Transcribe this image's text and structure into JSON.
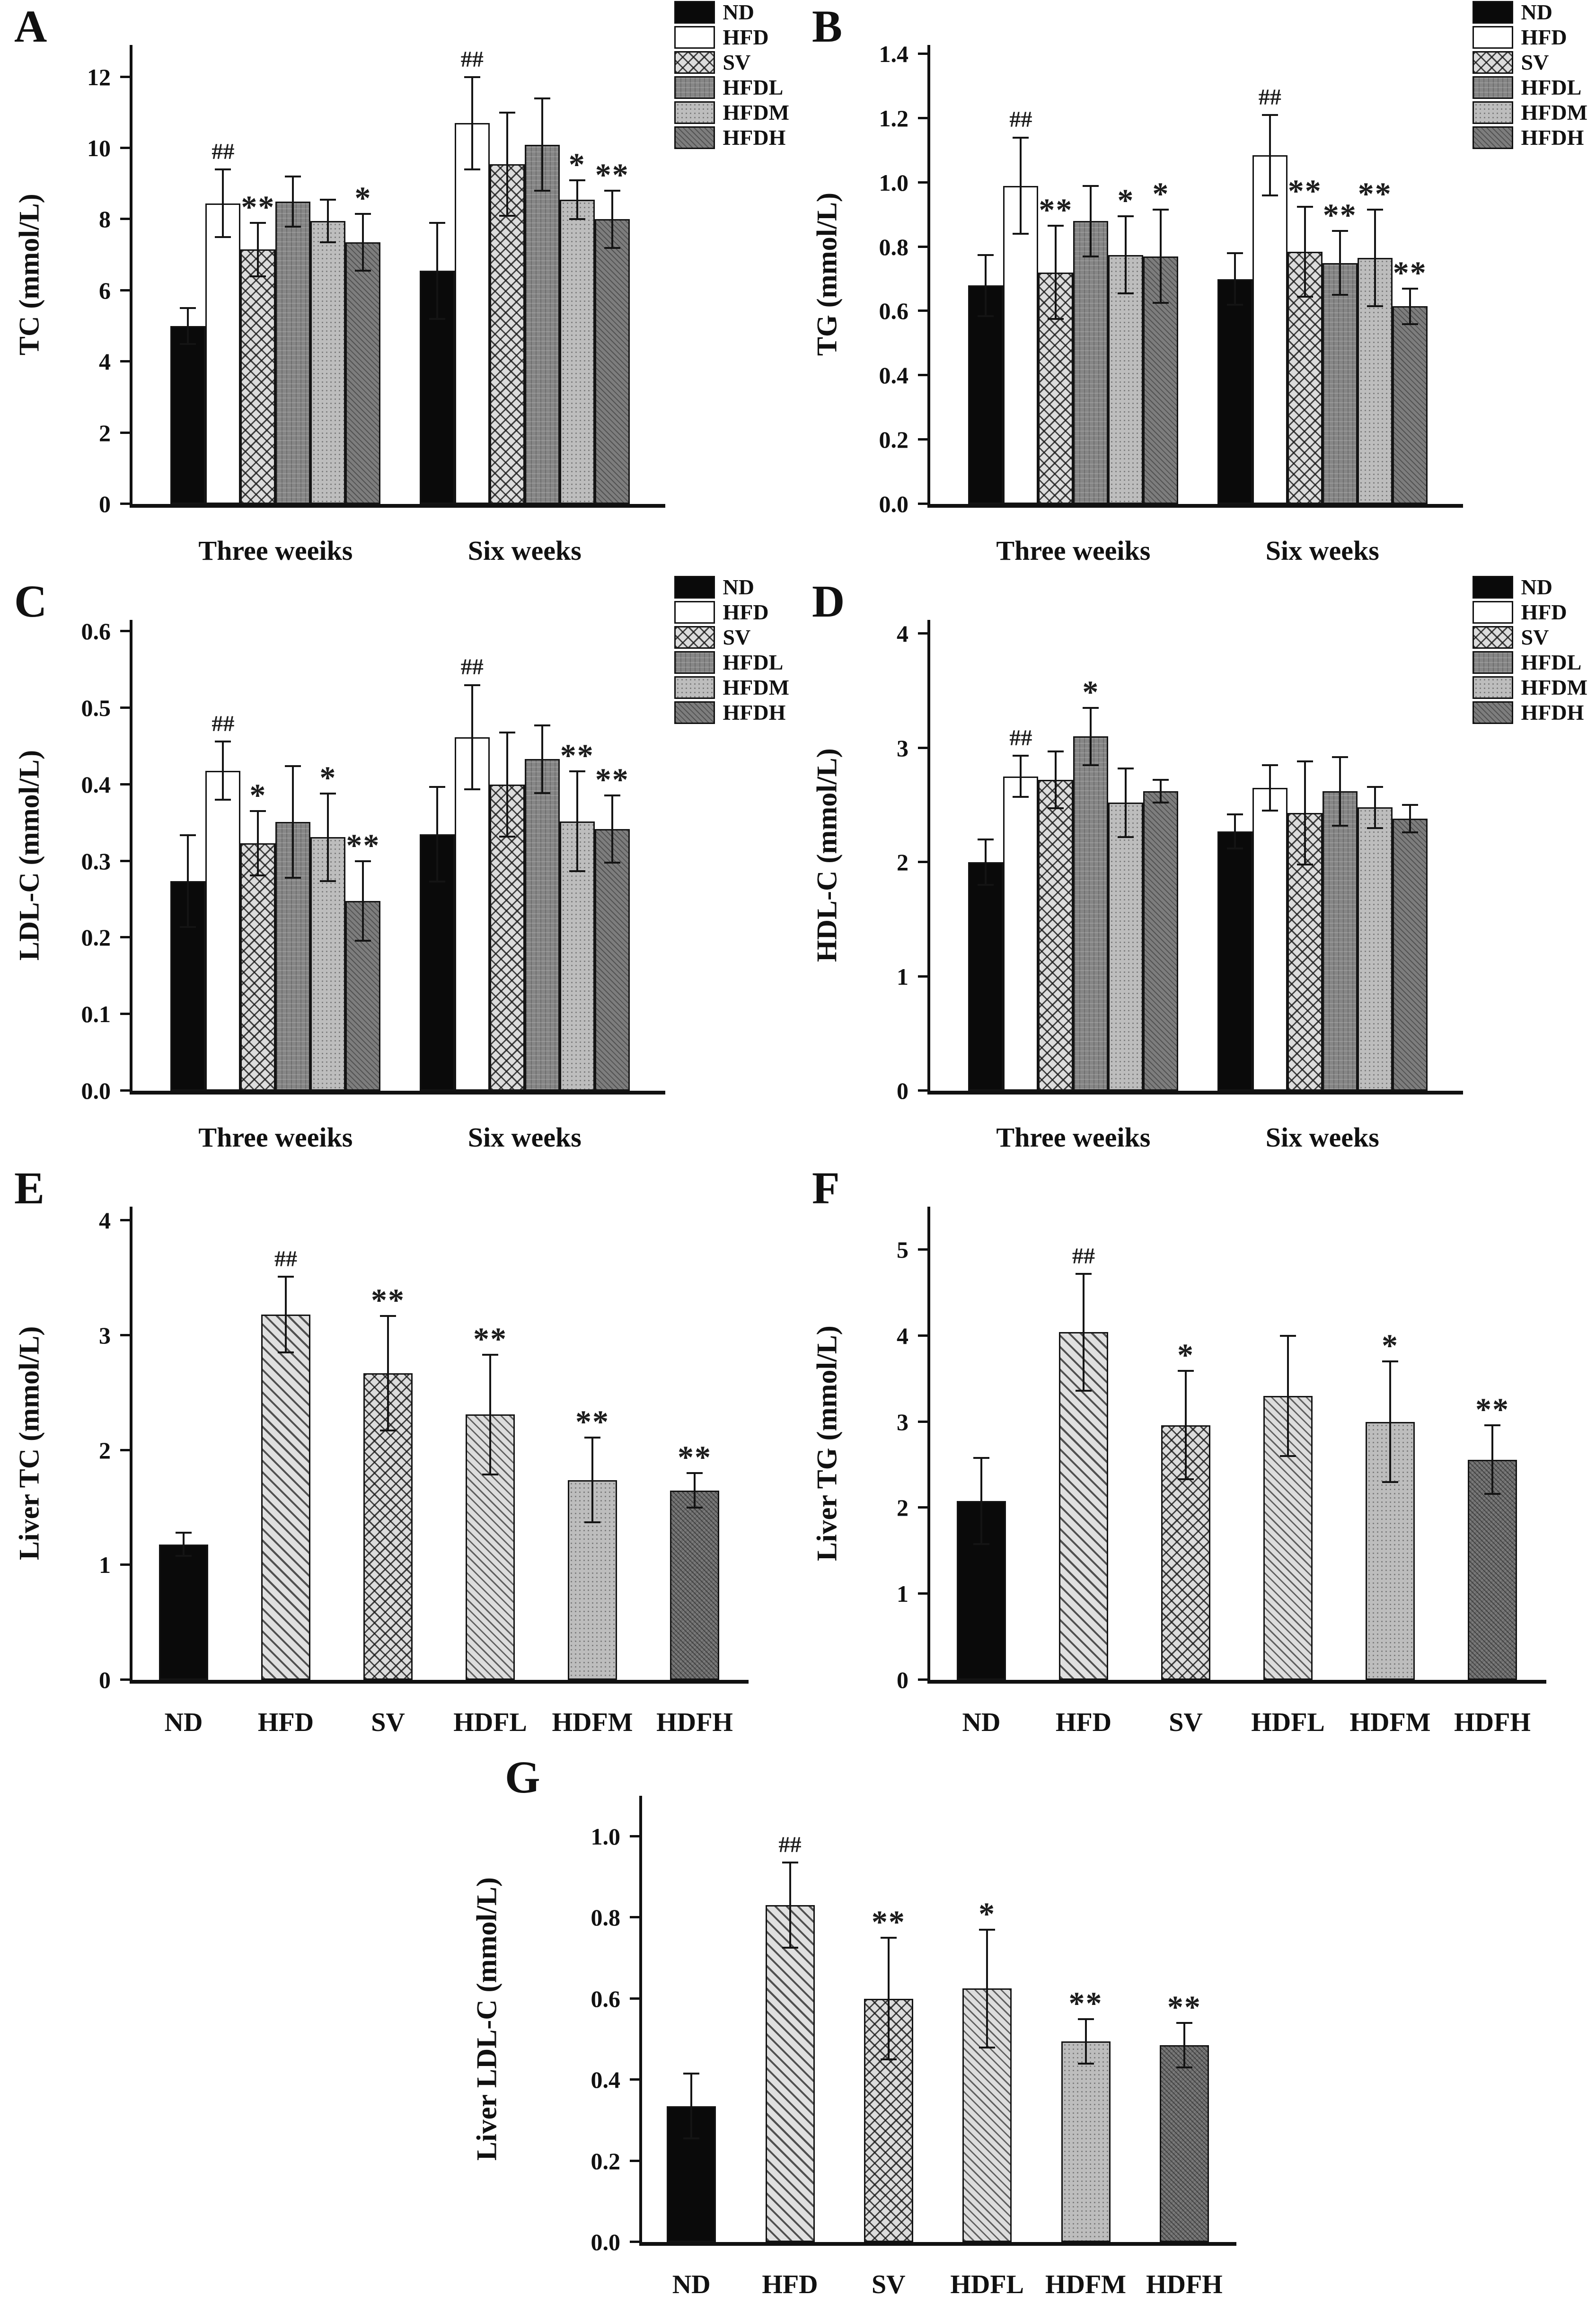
{
  "palette": {
    "black": "#0a0a0a",
    "white": "#ffffff",
    "gray_light": "#bdbdbd",
    "gray_mid": "#868686",
    "gray_dark": "#6d6d6d",
    "axis": "#111111"
  },
  "chart_data": [
    {
      "id": "A",
      "panel_letter": "A",
      "type": "bar",
      "ylabel": "TC (mmol/L)",
      "ylim": [
        0,
        12
      ],
      "ytick_step": 2,
      "ytick_decimals": 0,
      "axis_headroom": 0.075,
      "grid": false,
      "legend_position": "top-right",
      "legend": [
        "ND",
        "HFD",
        "SV",
        "HFDL",
        "HFDM",
        "HFDH"
      ],
      "categories": [
        "Three weeiks",
        "Six weeks"
      ],
      "series": [
        {
          "name": "ND",
          "values": [
            5.0,
            6.55
          ],
          "errors": [
            0.5,
            1.35
          ],
          "annotations": [
            "",
            ""
          ]
        },
        {
          "name": "HFD",
          "values": [
            8.45,
            10.7
          ],
          "errors": [
            0.95,
            1.3
          ],
          "annotations": [
            "##",
            "##"
          ]
        },
        {
          "name": "SV",
          "values": [
            7.15,
            9.55
          ],
          "errors": [
            0.75,
            1.45
          ],
          "annotations": [
            "**",
            ""
          ]
        },
        {
          "name": "HFDL",
          "values": [
            8.5,
            10.1
          ],
          "errors": [
            0.7,
            1.3
          ],
          "annotations": [
            "",
            ""
          ]
        },
        {
          "name": "HFDM",
          "values": [
            7.95,
            8.55
          ],
          "errors": [
            0.6,
            0.55
          ],
          "annotations": [
            "",
            "*"
          ]
        },
        {
          "name": "HFDH",
          "values": [
            7.35,
            8.0
          ],
          "errors": [
            0.8,
            0.8
          ],
          "annotations": [
            "*",
            "**"
          ]
        }
      ]
    },
    {
      "id": "B",
      "panel_letter": "B",
      "type": "bar",
      "ylabel": "TG (mmol/L)",
      "ylim": [
        0,
        1.4
      ],
      "ytick_step": 0.2,
      "ytick_decimals": 1,
      "axis_headroom": 0.02,
      "grid": false,
      "legend_position": "top-right",
      "legend": [
        "ND",
        "HFD",
        "SV",
        "HFDL",
        "HFDM",
        "HFDH"
      ],
      "categories": [
        "Three weeiks",
        "Six weeks"
      ],
      "series": [
        {
          "name": "ND",
          "values": [
            0.68,
            0.7
          ],
          "errors": [
            0.095,
            0.08
          ],
          "annotations": [
            "",
            ""
          ]
        },
        {
          "name": "HFD",
          "values": [
            0.99,
            1.085
          ],
          "errors": [
            0.15,
            0.125
          ],
          "annotations": [
            "##",
            "##"
          ]
        },
        {
          "name": "SV",
          "values": [
            0.72,
            0.785
          ],
          "errors": [
            0.145,
            0.14
          ],
          "annotations": [
            "**",
            "**"
          ]
        },
        {
          "name": "HFDL",
          "values": [
            0.88,
            0.75
          ],
          "errors": [
            0.11,
            0.1
          ],
          "annotations": [
            "",
            "**"
          ]
        },
        {
          "name": "HFDM",
          "values": [
            0.775,
            0.765
          ],
          "errors": [
            0.12,
            0.15
          ],
          "annotations": [
            "*",
            "**"
          ]
        },
        {
          "name": "HFDH",
          "values": [
            0.77,
            0.615
          ],
          "errors": [
            0.145,
            0.055
          ],
          "annotations": [
            "*",
            "**"
          ]
        }
      ]
    },
    {
      "id": "C",
      "panel_letter": "C",
      "type": "bar",
      "ylabel": "LDL-C (mmol/L)",
      "ylim": [
        0,
        0.6
      ],
      "ytick_step": 0.1,
      "ytick_decimals": 1,
      "axis_headroom": 0.025,
      "grid": false,
      "legend_position": "top-right",
      "legend": [
        "ND",
        "HFD",
        "SV",
        "HFDL",
        "HFDM",
        "HFDH"
      ],
      "categories": [
        "Three weeiks",
        "Six weeks"
      ],
      "series": [
        {
          "name": "ND",
          "values": [
            0.274,
            0.335
          ],
          "errors": [
            0.06,
            0.062
          ],
          "annotations": [
            "",
            ""
          ]
        },
        {
          "name": "HFD",
          "values": [
            0.418,
            0.462
          ],
          "errors": [
            0.038,
            0.068
          ],
          "annotations": [
            "##",
            "##"
          ]
        },
        {
          "name": "SV",
          "values": [
            0.323,
            0.4
          ],
          "errors": [
            0.042,
            0.068
          ],
          "annotations": [
            "*",
            ""
          ]
        },
        {
          "name": "HFDL",
          "values": [
            0.351,
            0.433
          ],
          "errors": [
            0.073,
            0.044
          ],
          "annotations": [
            "",
            ""
          ]
        },
        {
          "name": "HFDM",
          "values": [
            0.331,
            0.352
          ],
          "errors": [
            0.057,
            0.065
          ],
          "annotations": [
            "*",
            "**"
          ]
        },
        {
          "name": "HFDH",
          "values": [
            0.248,
            0.342
          ],
          "errors": [
            0.052,
            0.044
          ],
          "annotations": [
            "**",
            "**"
          ]
        }
      ]
    },
    {
      "id": "D",
      "panel_letter": "D",
      "type": "bar",
      "ylabel": "HDL-C (mmol/L)",
      "ylim": [
        0,
        4
      ],
      "ytick_step": 1,
      "ytick_decimals": 0,
      "axis_headroom": 0.03,
      "grid": false,
      "legend_position": "top-right",
      "legend": [
        "ND",
        "HFD",
        "SV",
        "HFDL",
        "HFDM",
        "HFDH"
      ],
      "categories": [
        "Three weeiks",
        "Six weeks"
      ],
      "series": [
        {
          "name": "ND",
          "values": [
            2.0,
            2.27
          ],
          "errors": [
            0.2,
            0.15
          ],
          "annotations": [
            "",
            ""
          ]
        },
        {
          "name": "HFD",
          "values": [
            2.75,
            2.65
          ],
          "errors": [
            0.18,
            0.2
          ],
          "annotations": [
            "##",
            ""
          ]
        },
        {
          "name": "SV",
          "values": [
            2.72,
            2.43
          ],
          "errors": [
            0.25,
            0.45
          ],
          "annotations": [
            "",
            ""
          ]
        },
        {
          "name": "HFDL",
          "values": [
            3.1,
            2.62
          ],
          "errors": [
            0.25,
            0.3
          ],
          "annotations": [
            "*",
            ""
          ]
        },
        {
          "name": "HFDM",
          "values": [
            2.52,
            2.48
          ],
          "errors": [
            0.3,
            0.18
          ],
          "annotations": [
            "",
            ""
          ]
        },
        {
          "name": "HFDH",
          "values": [
            2.62,
            2.38
          ],
          "errors": [
            0.1,
            0.12
          ],
          "annotations": [
            "",
            ""
          ]
        }
      ]
    },
    {
      "id": "E",
      "panel_letter": "E",
      "type": "bar",
      "ylabel": "Liver TC (mmol/L)",
      "ylim": [
        0,
        4
      ],
      "ytick_step": 1,
      "ytick_decimals": 0,
      "axis_headroom": 0.03,
      "grid": false,
      "categories": [
        "ND",
        "HFD",
        "SV",
        "HDFL",
        "HDFM",
        "HDFH"
      ],
      "values": [
        1.18,
        3.18,
        2.67,
        2.31,
        1.74,
        1.65
      ],
      "errors": [
        0.1,
        0.33,
        0.5,
        0.52,
        0.37,
        0.15
      ],
      "annotations": [
        "",
        "##",
        "**",
        "**",
        "**",
        "**"
      ]
    },
    {
      "id": "F",
      "panel_letter": "F",
      "type": "bar",
      "ylabel": "Liver TG (mmol/L)",
      "ylim": [
        0,
        5
      ],
      "ytick_step": 1,
      "ytick_decimals": 0,
      "axis_headroom": 0.1,
      "grid": false,
      "categories": [
        "ND",
        "HFD",
        "SV",
        "HDFL",
        "HDFM",
        "HDFH"
      ],
      "values": [
        2.08,
        4.04,
        2.96,
        3.3,
        3.0,
        2.56
      ],
      "errors": [
        0.5,
        0.68,
        0.63,
        0.7,
        0.7,
        0.4
      ],
      "annotations": [
        "",
        "##",
        "*",
        "",
        "*",
        "**"
      ]
    },
    {
      "id": "G",
      "panel_letter": "G",
      "type": "bar",
      "ylabel": "Liver LDL-C (mmol/L)",
      "ylim": [
        0,
        1.0
      ],
      "ytick_step": 0.2,
      "ytick_decimals": 1,
      "axis_headroom": 0.1,
      "grid": false,
      "categories": [
        "ND",
        "HFD",
        "SV",
        "HDFL",
        "HDFM",
        "HDFH"
      ],
      "values": [
        0.335,
        0.83,
        0.6,
        0.625,
        0.495,
        0.485
      ],
      "errors": [
        0.08,
        0.105,
        0.15,
        0.145,
        0.055,
        0.055
      ],
      "annotations": [
        "",
        "##",
        "**",
        "*",
        "**",
        "**"
      ]
    }
  ]
}
